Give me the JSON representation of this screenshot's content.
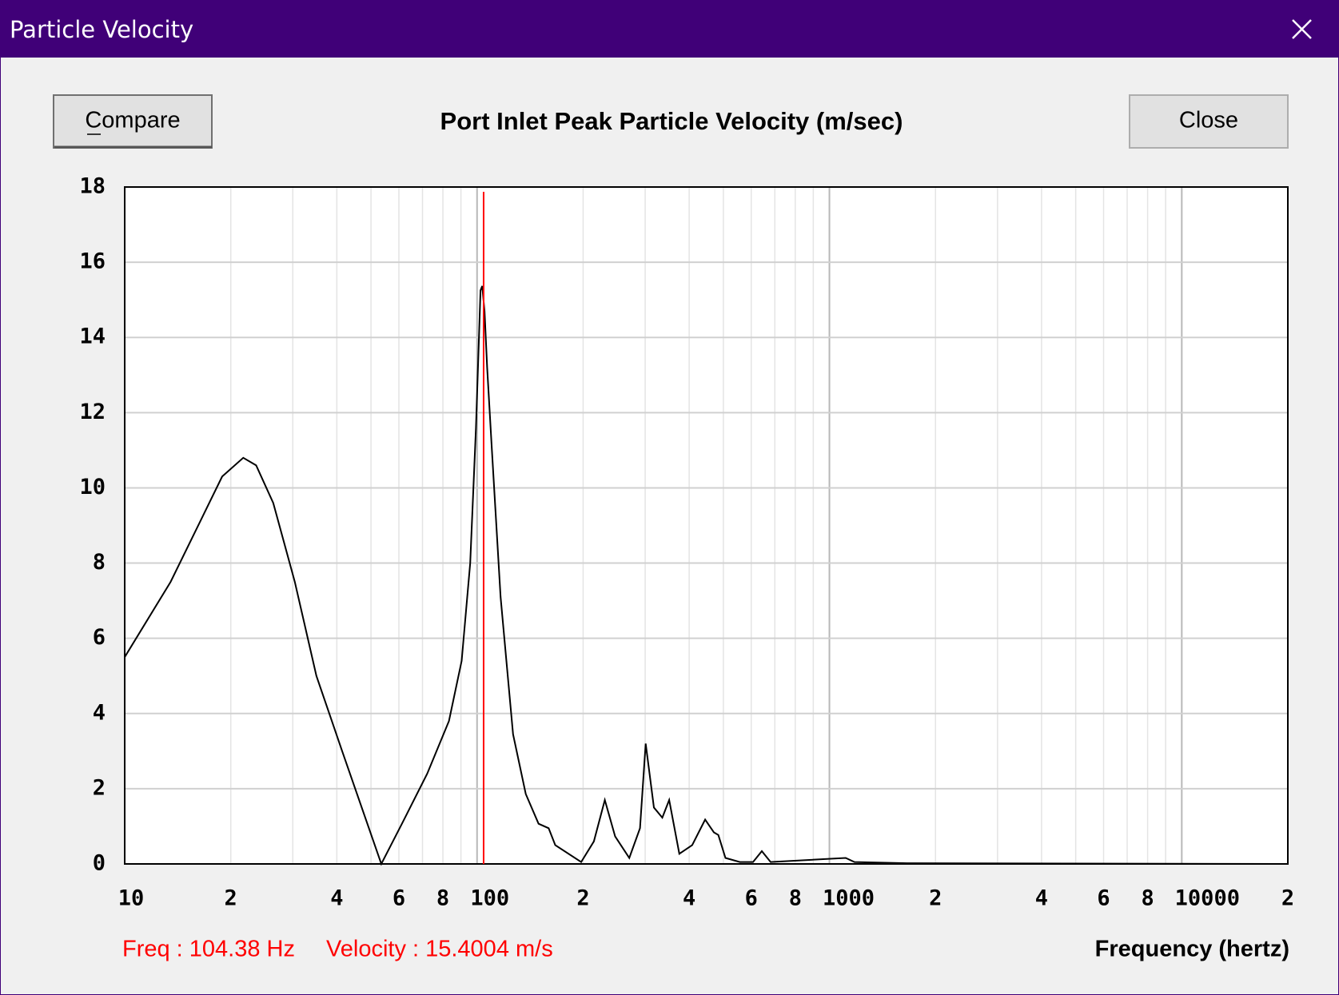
{
  "window": {
    "title": "Particle Velocity"
  },
  "buttons": {
    "compare": "Compare",
    "close": "Close"
  },
  "chart_data": {
    "type": "line",
    "title": "Port Inlet Peak Particle Velocity (m/sec)",
    "x_label": "Frequency (hertz)",
    "log_x": true,
    "grid": true,
    "color": "#000000",
    "xlim": [
      10,
      20000
    ],
    "ylim": [
      0,
      18
    ],
    "yticks": [
      0,
      2,
      4,
      6,
      8,
      10,
      12,
      14,
      16,
      18
    ],
    "xticks": [
      10,
      {
        "value": 20,
        "label": "2"
      },
      {
        "value": 40,
        "label": "4"
      },
      {
        "value": 60,
        "label": "6"
      },
      {
        "value": 80,
        "label": "8"
      },
      100,
      {
        "value": 200,
        "label": "2"
      },
      {
        "value": 400,
        "label": "4"
      },
      {
        "value": 600,
        "label": "6"
      },
      {
        "value": 800,
        "label": "8"
      },
      1000,
      {
        "value": 2000,
        "label": "2"
      },
      {
        "value": 4000,
        "label": "4"
      },
      {
        "value": 6000,
        "label": "6"
      },
      {
        "value": 8000,
        "label": "8"
      },
      10000,
      {
        "value": 20000,
        "label": "2"
      }
    ],
    "x_minor_ticks": [
      30,
      50,
      70,
      90,
      300,
      500,
      700,
      900,
      3000,
      5000,
      7000,
      9000
    ],
    "x": [
      10,
      13.5,
      18.9,
      21.7,
      23.6,
      26.4,
      30.4,
      35,
      41.4,
      53.5,
      61.2,
      72.2,
      83.2,
      90.4,
      95.6,
      99.3,
      102.3,
      103.4,
      105,
      106.8,
      109.9,
      116.6,
      126.5,
      137.5,
      149.5,
      159.6,
      166.7,
      197.5,
      214.5,
      230.5,
      246.5,
      270.4,
      290,
      301,
      317.6,
      335.5,
      351,
      375,
      408,
      444,
      470,
      484,
      507,
      557,
      607,
      643,
      681,
      1112,
      1178,
      1660,
      20000
    ],
    "values": [
      5.5,
      7.5,
      10.3,
      10.8,
      10.6,
      9.6,
      7.5,
      5.0,
      3.0,
      0,
      1.07,
      2.4,
      3.8,
      5.4,
      8.0,
      11.6,
      15.25,
      15.37,
      14.7,
      13.2,
      11.2,
      7.1,
      3.45,
      1.86,
      1.07,
      0.95,
      0.5,
      0.05,
      0.6,
      1.7,
      0.73,
      0.16,
      0.95,
      3.2,
      1.5,
      1.23,
      1.7,
      0.27,
      0.5,
      1.18,
      0.84,
      0.77,
      0.16,
      0.05,
      0.05,
      0.34,
      0.05,
      0.16,
      0.05,
      0.02,
      0
    ],
    "cursor": {
      "x": 104.38,
      "color": "#ff0000",
      "freq_label": "Freq : 104.38 Hz",
      "velocity_label": "Velocity : 15.4004 m/s"
    }
  }
}
